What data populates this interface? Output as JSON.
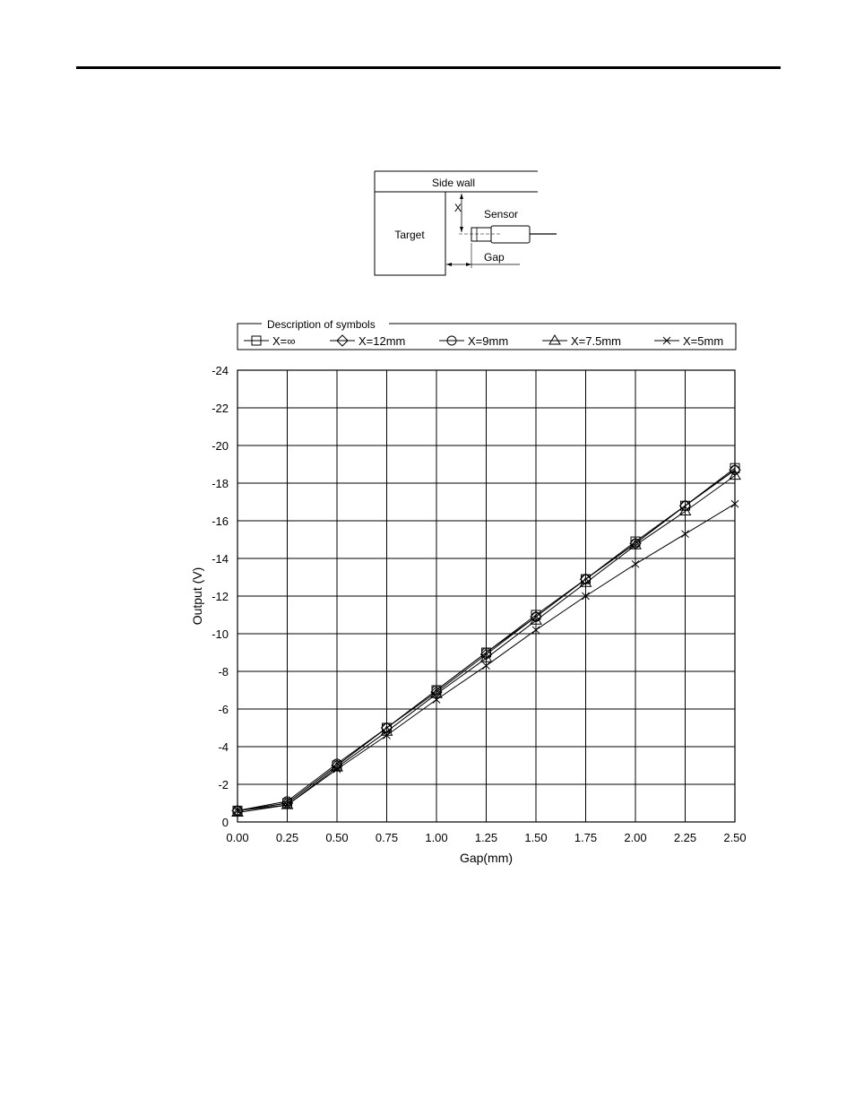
{
  "diagram": {
    "side_wall_label": "Side wall",
    "target_label": "Target",
    "x_label": "X",
    "sensor_label": "Sensor",
    "gap_label": "Gap"
  },
  "legend": {
    "title": "Description of symbols"
  },
  "chart_data": {
    "type": "line",
    "xlabel": "Gap(mm)",
    "ylabel": "Output (V)",
    "x": [
      0.0,
      0.25,
      0.5,
      0.75,
      1.0,
      1.25,
      1.5,
      1.75,
      2.0,
      2.25,
      2.5
    ],
    "x_tick_labels": [
      "0.00",
      "0.25",
      "0.50",
      "0.75",
      "1.00",
      "1.25",
      "1.50",
      "1.75",
      "2.00",
      "2.25",
      "2.50"
    ],
    "y_ticks": [
      0,
      -2,
      -4,
      -6,
      -8,
      -10,
      -12,
      -14,
      -16,
      -18,
      -20,
      -22,
      -24
    ],
    "y_tick_labels": [
      "0",
      "-2",
      "-4",
      "-6",
      "-8",
      "-10",
      "-12",
      "-14",
      "-16",
      "-18",
      "-20",
      "-22",
      "-24"
    ],
    "xlim": [
      0,
      2.5
    ],
    "ylim": [
      0,
      -24
    ],
    "y_axis_inverted": true,
    "grid": true,
    "legend_position": "top",
    "series": [
      {
        "name": "X=∞",
        "marker": "square",
        "values": [
          -0.6,
          -1.0,
          -3.0,
          -5.0,
          -7.0,
          -9.0,
          -11.0,
          -12.9,
          -14.9,
          -16.8,
          -18.8
        ]
      },
      {
        "name": "X=12mm",
        "marker": "diamond",
        "values": [
          -0.6,
          -1.0,
          -3.0,
          -5.0,
          -6.9,
          -8.9,
          -10.9,
          -12.9,
          -14.8,
          -16.8,
          -18.7
        ]
      },
      {
        "name": "X=9mm",
        "marker": "circle",
        "values": [
          -0.6,
          -1.1,
          -3.1,
          -5.0,
          -7.0,
          -9.0,
          -10.9,
          -12.9,
          -14.8,
          -16.8,
          -18.7
        ]
      },
      {
        "name": "X=7.5mm",
        "marker": "triangle",
        "values": [
          -0.5,
          -0.9,
          -2.9,
          -4.8,
          -6.8,
          -8.7,
          -10.7,
          -12.7,
          -14.7,
          -16.5,
          -18.4
        ]
      },
      {
        "name": "X=5mm",
        "marker": "x",
        "values": [
          -0.6,
          -0.9,
          -2.8,
          -4.6,
          -6.5,
          -8.3,
          -10.2,
          -12.0,
          -13.7,
          -15.3,
          -16.9
        ]
      }
    ]
  }
}
